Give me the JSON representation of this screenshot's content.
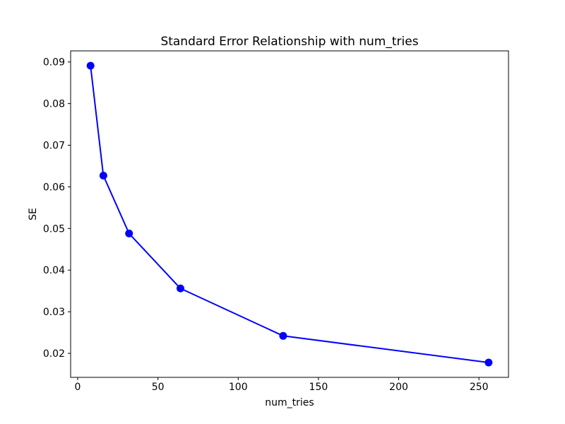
{
  "chart_data": {
    "type": "line",
    "title": "Standard Error Relationship with num_tries",
    "xlabel": "num_tries",
    "ylabel": "SE",
    "x": [
      8,
      16,
      32,
      64,
      128,
      256
    ],
    "series": [
      {
        "name": "SE",
        "values": [
          0.0891,
          0.0627,
          0.0488,
          0.0356,
          0.0242,
          0.0178
        ],
        "color": "#0000ff",
        "marker": "circle",
        "line_width": 2,
        "marker_radius": 5.5
      }
    ],
    "xlim": [
      -4.4,
      268.4
    ],
    "ylim": [
      0.014235,
      0.092665
    ],
    "xticks": [
      0,
      50,
      100,
      150,
      200,
      250
    ],
    "xtick_labels": [
      "0",
      "50",
      "100",
      "150",
      "200",
      "250"
    ],
    "yticks": [
      0.02,
      0.03,
      0.04,
      0.05,
      0.06,
      0.07,
      0.08,
      0.09
    ],
    "ytick_labels": [
      "0.02",
      "0.03",
      "0.04",
      "0.05",
      "0.06",
      "0.07",
      "0.08",
      "0.09"
    ],
    "grid": false,
    "legend_position": "none",
    "background_color": "#ffffff",
    "spine_color": "#000000",
    "tick_color": "#000000"
  }
}
